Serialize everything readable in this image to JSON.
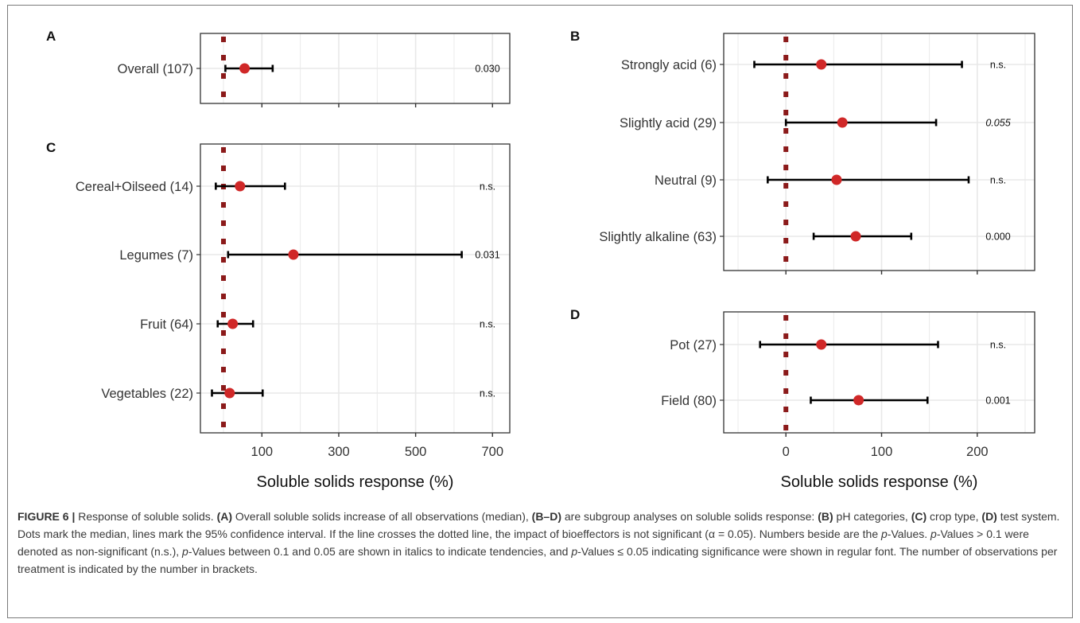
{
  "chart_data": [
    {
      "panel": "A",
      "type": "scatter",
      "categories": [
        "Overall (107)"
      ],
      "median": [
        55
      ],
      "ci_low": [
        5
      ],
      "ci_high": [
        128
      ],
      "p_values": [
        "0.030"
      ],
      "xlim": [
        -60,
        745
      ],
      "xticks": [
        100,
        300,
        500,
        700
      ],
      "reference_line": 0,
      "grid": true
    },
    {
      "panel": "B",
      "type": "scatter",
      "categories": [
        "Strongly acid (6)",
        "Slightly acid (29)",
        "Neutral (9)",
        "Slightly alkaline (63)"
      ],
      "median": [
        37,
        59,
        53,
        73
      ],
      "ci_low": [
        -33,
        0,
        -19,
        29
      ],
      "ci_high": [
        184,
        157,
        191,
        131
      ],
      "p_values": [
        "n.s.",
        "0.055",
        "n.s.",
        "0.000"
      ],
      "p_italic": [
        false,
        true,
        false,
        false
      ],
      "xlim": [
        -65,
        260
      ],
      "xticks": [
        0,
        100,
        200
      ],
      "reference_line": 0,
      "grid": true
    },
    {
      "panel": "C",
      "type": "scatter",
      "categories": [
        "Cereal+Oilseed (14)",
        "Legumes (7)",
        "Fruit (64)",
        "Vegetables (22)"
      ],
      "median": [
        43,
        182,
        24,
        16
      ],
      "ci_low": [
        -20,
        12,
        -15,
        -30
      ],
      "ci_high": [
        160,
        620,
        77,
        102
      ],
      "p_values": [
        "n.s.",
        "0.031",
        "n.s.",
        "n.s."
      ],
      "xlabel": "Soluble solids response (%)",
      "xlim": [
        -60,
        745
      ],
      "xticks": [
        100,
        300,
        500,
        700
      ],
      "reference_line": 0,
      "grid": true
    },
    {
      "panel": "D",
      "type": "scatter",
      "categories": [
        "Pot (27)",
        "Field (80)"
      ],
      "median": [
        37,
        76
      ],
      "ci_low": [
        -27,
        26
      ],
      "ci_high": [
        159,
        148
      ],
      "p_values": [
        "n.s.",
        "0.001"
      ],
      "xlabel": "Soluble solids response (%)",
      "xlim": [
        -65,
        260
      ],
      "xticks": [
        0,
        100,
        200
      ],
      "reference_line": 0,
      "grid": true
    }
  ],
  "caption": {
    "fig_label": "FIGURE 6 |",
    "parts": [
      {
        "t": " Response of soluble solids. "
      },
      {
        "t": "(A)",
        "b": true
      },
      {
        "t": " Overall soluble solids increase of all observations (median), "
      },
      {
        "t": "(B–D)",
        "b": true
      },
      {
        "t": " are subgroup analyses on soluble solids response: "
      },
      {
        "t": "(B)",
        "b": true
      },
      {
        "t": " pH categories, "
      },
      {
        "t": "(C)",
        "b": true
      },
      {
        "t": " crop type, "
      },
      {
        "t": "(D)",
        "b": true
      },
      {
        "t": " test system. Dots mark the median, lines mark the 95% confidence interval. If the line crosses the dotted line, the impact of bioeffectors is not significant (α = 0.05). Numbers beside are the "
      },
      {
        "t": "p",
        "i": true
      },
      {
        "t": "-Values. "
      },
      {
        "t": "p",
        "i": true
      },
      {
        "t": "-Values > 0.1 were denoted as non-significant (n.s.), "
      },
      {
        "t": "p",
        "i": true
      },
      {
        "t": "-Values between 0.1 and 0.05 are shown in italics to indicate tendencies, and "
      },
      {
        "t": "p",
        "i": true
      },
      {
        "t": "-Values ≤ 0.05 indicating significance were shown in regular font. The number of observations per treatment is indicated by the number in brackets."
      }
    ]
  },
  "colors": {
    "point": "#d02828",
    "reference_line": "#8b1a1a",
    "grid": "#e8e8e8",
    "axis": "#333333",
    "text": "#333333"
  }
}
